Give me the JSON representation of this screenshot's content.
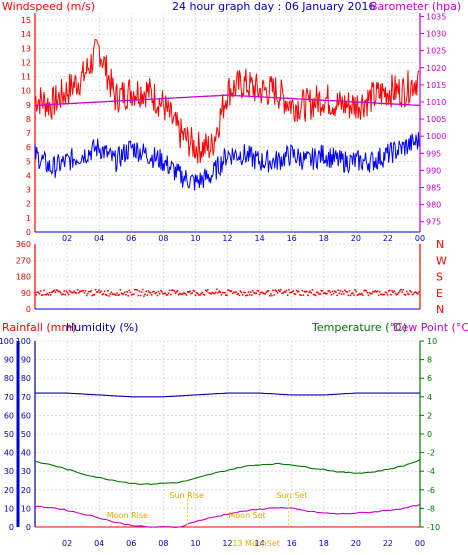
{
  "chart_data": [
    {
      "type": "line",
      "title": "24 hour graph day : 06 January 2016",
      "ylabel_left": "Windspeed (m/s)",
      "ylabel_right": "Barometer (hpa)",
      "x_ticks": [
        "02",
        "04",
        "06",
        "08",
        "10",
        "12",
        "14",
        "16",
        "18",
        "20",
        "22",
        "00"
      ],
      "y_left_ticks": [
        "0",
        "1",
        "2",
        "3",
        "4",
        "5",
        "6",
        "7",
        "8",
        "9",
        "10",
        "11",
        "12",
        "13",
        "14",
        "15"
      ],
      "y_right_ticks": [
        "975",
        "980",
        "985",
        "990",
        "995",
        "1000",
        "1005",
        "1010",
        "1015",
        "1020",
        "1025",
        "1030",
        "1035"
      ],
      "ylim_left": [
        0,
        15.5
      ],
      "ylim_right": [
        972,
        1036
      ],
      "grid": true,
      "series": [
        {
          "role": "gust",
          "color": "#ff0000",
          "x": [
            0,
            1,
            2,
            3,
            4,
            5,
            6,
            7,
            8,
            9,
            10,
            11,
            12,
            13,
            14,
            15,
            16,
            17,
            18,
            19,
            20,
            21,
            22,
            23,
            24
          ],
          "values": [
            9.5,
            9,
            10,
            11,
            13,
            9.5,
            10,
            10,
            9,
            7,
            6,
            6,
            10,
            10.5,
            10,
            10,
            9,
            9,
            9.5,
            9,
            9,
            9.5,
            10,
            10,
            11
          ]
        },
        {
          "role": "average",
          "color": "#0000ff",
          "x": [
            0,
            1,
            2,
            3,
            4,
            5,
            6,
            7,
            8,
            9,
            10,
            11,
            12,
            13,
            14,
            15,
            16,
            17,
            18,
            19,
            20,
            21,
            22,
            23,
            24
          ],
          "values": [
            5.5,
            4.5,
            5,
            5.5,
            6,
            5,
            6,
            5.5,
            5,
            4,
            3.5,
            4,
            5.5,
            5.5,
            5,
            5,
            5.5,
            5,
            5.5,
            5,
            5,
            5,
            5.5,
            6,
            6.5
          ]
        },
        {
          "role": "barometer",
          "color": "#cc00cc",
          "axis": "right",
          "x": [
            0,
            2,
            4,
            6,
            8,
            10,
            12,
            14,
            16,
            18,
            20,
            22,
            24
          ],
          "values": [
            1009,
            1009.5,
            1010,
            1010.5,
            1011,
            1011.5,
            1012,
            1011.5,
            1011,
            1010.5,
            1010,
            1009.5,
            1009
          ]
        }
      ]
    },
    {
      "type": "scatter",
      "y_left_ticks": [
        "360",
        "270",
        "180",
        "90",
        "0"
      ],
      "y_right_labels": [
        "N",
        "W",
        "S",
        "E",
        "N"
      ],
      "ylim": [
        0,
        360
      ],
      "series": [
        {
          "role": "wind-direction",
          "color": "#ff0000",
          "mean": 90,
          "spread": 20
        }
      ]
    },
    {
      "type": "line",
      "ylabel_left_1": "Rainfall (mm)",
      "ylabel_left_2": "Humidity (%)",
      "ylabel_right_1": "Temperature (°C)",
      "ylabel_right_2": "Dew Point (°C)",
      "y_left_ticks": [
        "100",
        "90",
        "80",
        "70",
        "60",
        "50",
        "40",
        "30",
        "20",
        "10",
        "0"
      ],
      "y_right_ticks": [
        "10",
        "8",
        "6",
        "4",
        "2",
        "0",
        "-2",
        "-4",
        "-6",
        "-8",
        "-10"
      ],
      "x_ticks": [
        "02",
        "04",
        "06",
        "08",
        "10",
        "12",
        "14",
        "16",
        "18",
        "20",
        "22",
        "00"
      ],
      "ylim_left": [
        0,
        100
      ],
      "ylim_right": [
        -10,
        10
      ],
      "annotations": [
        "Sun Rise",
        "Sun Set",
        "Moon Rise",
        "Moon Set",
        "13 MoonSet"
      ],
      "series": [
        {
          "role": "humidity",
          "color": "#0000aa",
          "axis": "left",
          "x": [
            0,
            2,
            4,
            6,
            8,
            10,
            12,
            14,
            16,
            18,
            20,
            22,
            24
          ],
          "values": [
            72,
            72,
            71,
            70,
            70,
            71,
            72,
            72,
            71,
            71,
            72,
            72,
            72
          ]
        },
        {
          "role": "temperature",
          "color": "#007700",
          "axis": "right",
          "x": [
            0,
            1,
            2,
            3,
            4,
            5,
            6,
            7,
            8,
            9,
            10,
            11,
            12,
            13,
            14,
            15,
            16,
            17,
            18,
            19,
            20,
            21,
            22,
            23,
            24
          ],
          "values": [
            -3,
            -3.3,
            -3.8,
            -4.3,
            -4.7,
            -5,
            -5.3,
            -5.4,
            -5.3,
            -5.2,
            -4.8,
            -4.3,
            -3.9,
            -3.5,
            -3.3,
            -3.2,
            -3.3,
            -3.6,
            -3.8,
            -4.1,
            -4.2,
            -4.1,
            -3.8,
            -3.4,
            -2.8
          ]
        },
        {
          "role": "dew-point",
          "color": "#cc00cc",
          "axis": "right",
          "x": [
            0,
            1,
            2,
            3,
            4,
            5,
            6,
            7,
            8,
            9,
            10,
            11,
            12,
            13,
            14,
            15,
            16,
            17,
            18,
            19,
            20,
            21,
            22,
            23,
            24
          ],
          "values": [
            -7.8,
            -7.9,
            -8.2,
            -8.6,
            -9,
            -9.5,
            -9.8,
            -10,
            -10,
            -10,
            -9.4,
            -9,
            -8.6,
            -8.3,
            -8.1,
            -7.9,
            -8,
            -8.3,
            -8.5,
            -8.6,
            -8.5,
            -8.4,
            -8.2,
            -8,
            -7.6
          ]
        }
      ]
    }
  ]
}
